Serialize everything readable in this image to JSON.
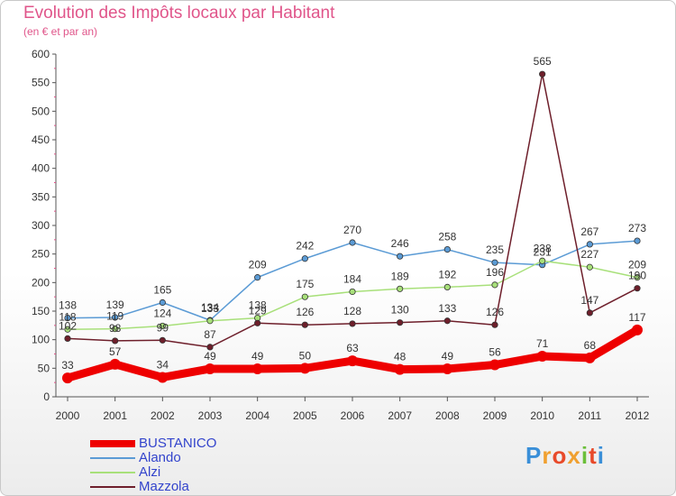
{
  "title": "Evolution des Impôts locaux par Habitant",
  "subtitle": "(en € et par an)",
  "brand": {
    "text": "Proxiti",
    "colors": [
      "#3a8fd8",
      "#f0a030",
      "#e84a2a",
      "#f0a030",
      "#6bbf3a",
      "#e84a2a",
      "#3a8fd8"
    ]
  },
  "chart_data": {
    "type": "line",
    "x": [
      2000,
      2001,
      2002,
      2003,
      2004,
      2005,
      2006,
      2007,
      2008,
      2009,
      2010,
      2011,
      2012
    ],
    "ylim": [
      0,
      600
    ],
    "yticks": [
      0,
      50,
      100,
      150,
      200,
      250,
      300,
      350,
      400,
      450,
      500,
      550,
      600
    ],
    "grid": false,
    "legend_position": "bottom-left",
    "series": [
      {
        "name": "BUSTANICO",
        "color": "#ee0000",
        "values": [
          33,
          57,
          34,
          49,
          49,
          50,
          63,
          48,
          49,
          56,
          71,
          68,
          117
        ],
        "labels": true,
        "bold": true
      },
      {
        "name": "Alando",
        "color": "#5b9bd5",
        "values": [
          138,
          139,
          165,
          134,
          209,
          242,
          270,
          246,
          258,
          235,
          231,
          267,
          273
        ],
        "labels": true
      },
      {
        "name": "Alzi",
        "color": "#a8e07a",
        "values": [
          118,
          119,
          124,
          133,
          138,
          175,
          184,
          189,
          192,
          196,
          238,
          227,
          209
        ],
        "labels": true
      },
      {
        "name": "Mazzola",
        "color": "#6e1f2b",
        "values": [
          102,
          98,
          99,
          87,
          129,
          126,
          128,
          130,
          133,
          126,
          565,
          147,
          190
        ],
        "labels": true
      }
    ]
  }
}
